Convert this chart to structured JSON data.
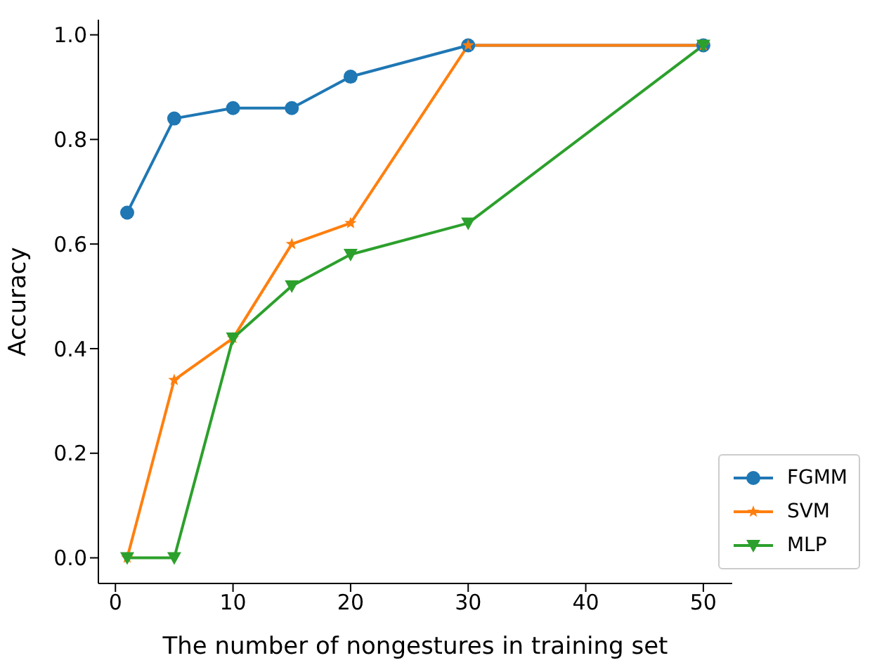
{
  "chart_data": {
    "type": "line",
    "xlabel": "The number of nongestures in training set",
    "ylabel": "Accuracy",
    "x": [
      1,
      5,
      10,
      15,
      20,
      30,
      50
    ],
    "series": [
      {
        "name": "FGMM",
        "color": "#1f77b4",
        "marker": "circle",
        "values": [
          0.66,
          0.84,
          0.86,
          0.86,
          0.92,
          0.98,
          0.98
        ]
      },
      {
        "name": "SVM",
        "color": "#ff7f0e",
        "marker": "star",
        "values": [
          0,
          0.34,
          0.42,
          0.6,
          0.64,
          0.98,
          0.98
        ]
      },
      {
        "name": "MLP",
        "color": "#2ca02c",
        "marker": "triangle",
        "values": [
          0,
          0,
          0.42,
          0.52,
          0.58,
          0.64,
          0.98
        ]
      }
    ],
    "xlim": [
      -1.45,
      52.45
    ],
    "xticks": [
      0,
      10,
      20,
      30,
      40,
      50
    ],
    "ylim": [
      -0.049,
      1.029
    ],
    "yticks": [
      {
        "value": 0,
        "label": "0.0"
      },
      {
        "value": 0.2,
        "label": "0.2"
      },
      {
        "value": 0.4,
        "label": "0.4"
      },
      {
        "value": 0.6,
        "label": "0.6"
      },
      {
        "value": 0.8,
        "label": "0.8"
      },
      {
        "value": 1,
        "label": "1.0"
      }
    ],
    "legend": "bottom right"
  }
}
